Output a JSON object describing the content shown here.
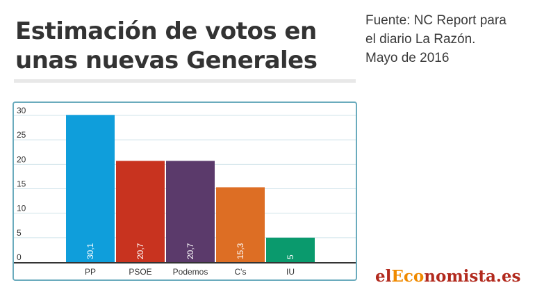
{
  "title_lines": [
    "Estimación de votos en",
    "unas nuevas Generales"
  ],
  "source_lines": [
    "Fuente:  NC Report para",
    "el diario La Razón.",
    "Mayo de 2016"
  ],
  "logo": {
    "part1": "el",
    "part2": "Eco",
    "part3": "nomista.es"
  },
  "colors": {
    "frame": "#6aabbd",
    "grid": "#cfe3ea",
    "axis": "#333333",
    "bar_label": "#ffffff"
  },
  "chart_data": {
    "type": "bar",
    "categories": [
      "PP",
      "PSOE",
      "Podemos",
      "C's",
      "IU"
    ],
    "values": [
      30.1,
      20.7,
      20.7,
      15.3,
      5
    ],
    "value_labels": [
      "30,1",
      "20,7",
      "20,7",
      "15,3",
      "5"
    ],
    "bar_colors": [
      "#0f9edb",
      "#c8331f",
      "#5b3a6b",
      "#dd6e24",
      "#0a9a6d"
    ],
    "title": "Estimación de votos en unas nuevas Generales",
    "xlabel": "",
    "ylabel": "",
    "ylim": [
      0,
      30
    ],
    "yticks": [
      0,
      5,
      10,
      15,
      20,
      25,
      30
    ],
    "grid": true,
    "legend": "none"
  }
}
